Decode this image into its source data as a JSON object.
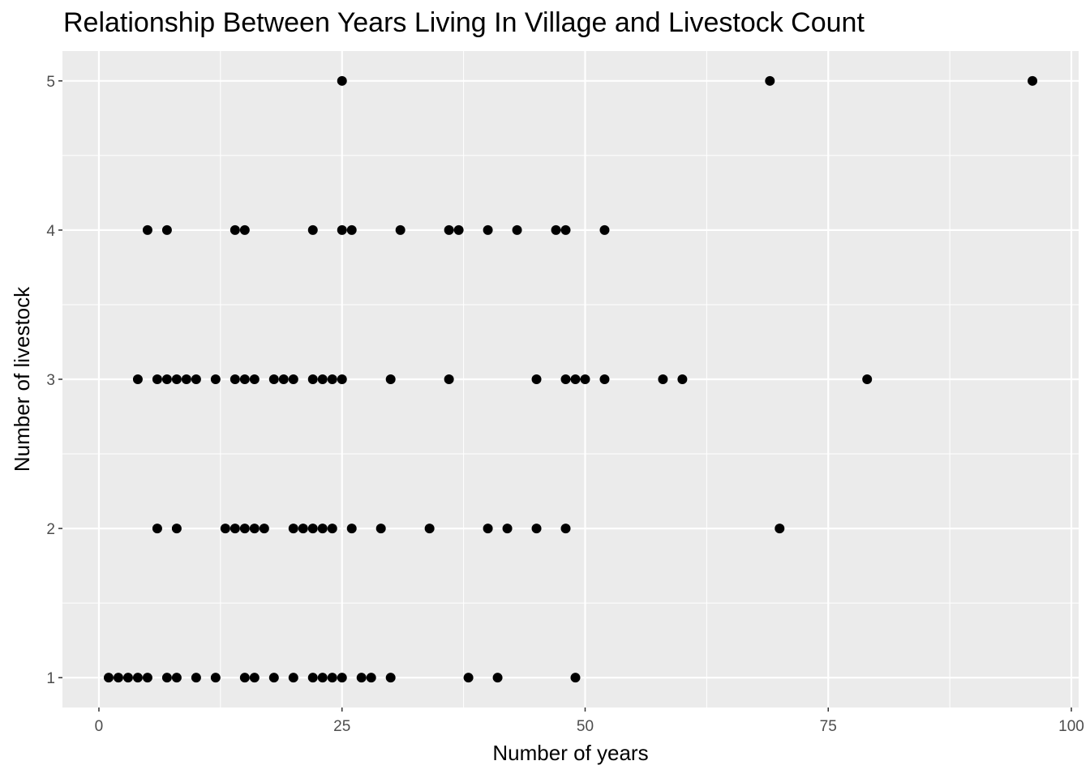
{
  "chart_data": {
    "type": "scatter",
    "title": "Relationship Between Years Living In Village and Livestock Count",
    "xlabel": "Number of years",
    "ylabel": "Number of livestock",
    "xlim": [
      -3.75,
      100.75
    ],
    "ylim": [
      0.8,
      5.2
    ],
    "x_ticks": [
      0,
      25,
      50,
      75,
      100
    ],
    "y_ticks": [
      1,
      2,
      3,
      4,
      5
    ],
    "grid": true,
    "legend": "none",
    "colors": {
      "panel": "#ebebeb",
      "grid": "#ffffff",
      "point": "#000000",
      "tick_text": "#4d4d4d",
      "tick_mark": "#333333"
    },
    "points": [
      {
        "x": 25,
        "y": 5
      },
      {
        "x": 69,
        "y": 5
      },
      {
        "x": 96,
        "y": 5
      },
      {
        "x": 5,
        "y": 4
      },
      {
        "x": 7,
        "y": 4
      },
      {
        "x": 14,
        "y": 4
      },
      {
        "x": 15,
        "y": 4
      },
      {
        "x": 22,
        "y": 4
      },
      {
        "x": 25,
        "y": 4
      },
      {
        "x": 26,
        "y": 4
      },
      {
        "x": 31,
        "y": 4
      },
      {
        "x": 36,
        "y": 4
      },
      {
        "x": 37,
        "y": 4
      },
      {
        "x": 40,
        "y": 4
      },
      {
        "x": 43,
        "y": 4
      },
      {
        "x": 47,
        "y": 4
      },
      {
        "x": 48,
        "y": 4
      },
      {
        "x": 52,
        "y": 4
      },
      {
        "x": 4,
        "y": 3
      },
      {
        "x": 6,
        "y": 3
      },
      {
        "x": 7,
        "y": 3
      },
      {
        "x": 8,
        "y": 3
      },
      {
        "x": 9,
        "y": 3
      },
      {
        "x": 10,
        "y": 3
      },
      {
        "x": 12,
        "y": 3
      },
      {
        "x": 14,
        "y": 3
      },
      {
        "x": 15,
        "y": 3
      },
      {
        "x": 16,
        "y": 3
      },
      {
        "x": 18,
        "y": 3
      },
      {
        "x": 19,
        "y": 3
      },
      {
        "x": 20,
        "y": 3
      },
      {
        "x": 22,
        "y": 3
      },
      {
        "x": 23,
        "y": 3
      },
      {
        "x": 24,
        "y": 3
      },
      {
        "x": 25,
        "y": 3
      },
      {
        "x": 30,
        "y": 3
      },
      {
        "x": 36,
        "y": 3
      },
      {
        "x": 45,
        "y": 3
      },
      {
        "x": 48,
        "y": 3
      },
      {
        "x": 49,
        "y": 3
      },
      {
        "x": 50,
        "y": 3
      },
      {
        "x": 52,
        "y": 3
      },
      {
        "x": 58,
        "y": 3
      },
      {
        "x": 60,
        "y": 3
      },
      {
        "x": 79,
        "y": 3
      },
      {
        "x": 6,
        "y": 2
      },
      {
        "x": 8,
        "y": 2
      },
      {
        "x": 13,
        "y": 2
      },
      {
        "x": 14,
        "y": 2
      },
      {
        "x": 15,
        "y": 2
      },
      {
        "x": 16,
        "y": 2
      },
      {
        "x": 17,
        "y": 2
      },
      {
        "x": 20,
        "y": 2
      },
      {
        "x": 21,
        "y": 2
      },
      {
        "x": 22,
        "y": 2
      },
      {
        "x": 23,
        "y": 2
      },
      {
        "x": 24,
        "y": 2
      },
      {
        "x": 26,
        "y": 2
      },
      {
        "x": 29,
        "y": 2
      },
      {
        "x": 34,
        "y": 2
      },
      {
        "x": 40,
        "y": 2
      },
      {
        "x": 42,
        "y": 2
      },
      {
        "x": 45,
        "y": 2
      },
      {
        "x": 48,
        "y": 2
      },
      {
        "x": 70,
        "y": 2
      },
      {
        "x": 1,
        "y": 1
      },
      {
        "x": 2,
        "y": 1
      },
      {
        "x": 3,
        "y": 1
      },
      {
        "x": 4,
        "y": 1
      },
      {
        "x": 5,
        "y": 1
      },
      {
        "x": 7,
        "y": 1
      },
      {
        "x": 8,
        "y": 1
      },
      {
        "x": 10,
        "y": 1
      },
      {
        "x": 12,
        "y": 1
      },
      {
        "x": 15,
        "y": 1
      },
      {
        "x": 16,
        "y": 1
      },
      {
        "x": 18,
        "y": 1
      },
      {
        "x": 20,
        "y": 1
      },
      {
        "x": 22,
        "y": 1
      },
      {
        "x": 23,
        "y": 1
      },
      {
        "x": 24,
        "y": 1
      },
      {
        "x": 25,
        "y": 1
      },
      {
        "x": 27,
        "y": 1
      },
      {
        "x": 28,
        "y": 1
      },
      {
        "x": 30,
        "y": 1
      },
      {
        "x": 38,
        "y": 1
      },
      {
        "x": 41,
        "y": 1
      },
      {
        "x": 49,
        "y": 1
      }
    ]
  }
}
